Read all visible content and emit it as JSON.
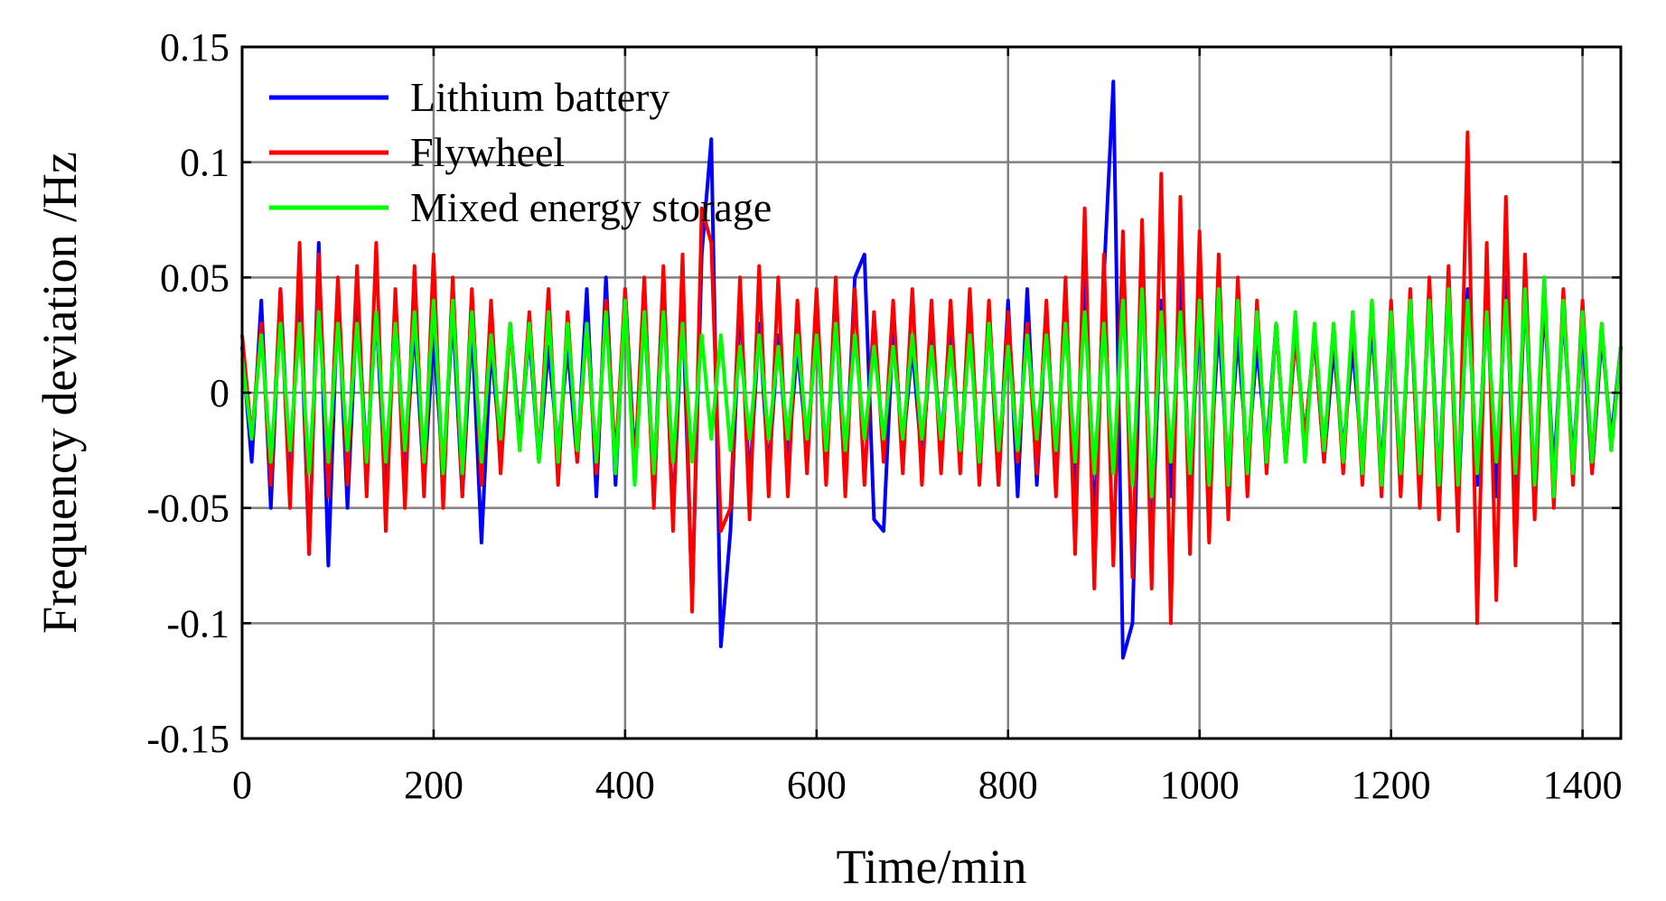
{
  "chart_data": {
    "type": "line",
    "title": "",
    "xlabel": "Time/min",
    "ylabel": "Frequency deviation /Hz",
    "xlim": [
      0,
      1440
    ],
    "ylim": [
      -0.15,
      0.15
    ],
    "xticks": [
      0,
      200,
      400,
      600,
      800,
      1000,
      1200,
      1400
    ],
    "xtick_labels": [
      "0",
      "200",
      "400",
      "600",
      "800",
      "1000",
      "1200",
      "1400"
    ],
    "yticks": [
      0.15,
      0.1,
      0.05,
      0,
      -0.05,
      -0.1,
      -0.15
    ],
    "ytick_labels": [
      "0.15",
      "0.1",
      "0.05",
      "0",
      "-0.05",
      "-0.1",
      "-0.15"
    ],
    "grid": true,
    "legend_position": "top-left",
    "series": [
      {
        "name": "Lithium battery",
        "color": "#0000ff",
        "x": [
          0,
          10,
          20,
          30,
          40,
          50,
          60,
          70,
          80,
          90,
          100,
          110,
          120,
          130,
          140,
          150,
          160,
          170,
          180,
          190,
          200,
          210,
          220,
          230,
          240,
          250,
          260,
          270,
          280,
          290,
          300,
          310,
          320,
          330,
          340,
          350,
          360,
          370,
          380,
          390,
          400,
          410,
          420,
          430,
          440,
          450,
          460,
          470,
          480,
          490,
          500,
          510,
          520,
          530,
          540,
          550,
          560,
          570,
          580,
          590,
          600,
          610,
          620,
          630,
          640,
          650,
          660,
          670,
          680,
          690,
          700,
          710,
          720,
          730,
          740,
          750,
          760,
          770,
          780,
          790,
          800,
          810,
          820,
          830,
          840,
          850,
          860,
          870,
          880,
          890,
          900,
          910,
          920,
          930,
          940,
          950,
          960,
          970,
          980,
          990,
          1000,
          1010,
          1020,
          1030,
          1040,
          1050,
          1060,
          1070,
          1080,
          1090,
          1100,
          1110,
          1120,
          1130,
          1140,
          1150,
          1160,
          1170,
          1180,
          1190,
          1200,
          1210,
          1220,
          1230,
          1240,
          1250,
          1260,
          1270,
          1280,
          1290,
          1300,
          1310,
          1320,
          1330,
          1340,
          1350,
          1360,
          1370,
          1380,
          1390,
          1400,
          1410,
          1420,
          1430,
          1440
        ],
        "y": [
          0.02,
          -0.03,
          0.04,
          -0.05,
          0.045,
          -0.04,
          0.05,
          -0.07,
          0.065,
          -0.075,
          0.045,
          -0.05,
          0.04,
          -0.03,
          0.035,
          -0.045,
          0.04,
          -0.035,
          0.03,
          -0.04,
          0.025,
          -0.035,
          0.035,
          -0.045,
          0.03,
          -0.065,
          0.02,
          -0.025,
          0.03,
          -0.02,
          0.025,
          -0.03,
          0.02,
          -0.025,
          0.02,
          -0.03,
          0.045,
          -0.045,
          0.05,
          -0.04,
          0.045,
          -0.03,
          0.035,
          -0.04,
          0.05,
          -0.055,
          0.04,
          -0.09,
          0.06,
          0.11,
          -0.11,
          -0.06,
          0.04,
          -0.04,
          0.03,
          -0.035,
          0.025,
          -0.03,
          0.02,
          -0.025,
          0.03,
          -0.03,
          0.035,
          -0.04,
          0.05,
          0.06,
          -0.055,
          -0.06,
          0.03,
          -0.025,
          0.02,
          -0.03,
          0.025,
          -0.02,
          0.025,
          -0.03,
          0.03,
          -0.035,
          0.035,
          -0.04,
          0.04,
          -0.045,
          0.045,
          -0.04,
          0.035,
          -0.035,
          0.04,
          -0.045,
          0.05,
          -0.06,
          0.05,
          0.135,
          -0.115,
          -0.1,
          0.06,
          -0.07,
          0.04,
          -0.045,
          0.05,
          -0.04,
          0.035,
          -0.04,
          0.03,
          -0.035,
          0.025,
          -0.03,
          0.02,
          -0.025,
          0.03,
          -0.03,
          0.025,
          -0.02,
          0.025,
          -0.03,
          0.02,
          -0.025,
          0.02,
          -0.03,
          0.03,
          -0.035,
          0.035,
          -0.04,
          0.04,
          -0.045,
          0.045,
          -0.04,
          0.05,
          -0.05,
          0.045,
          -0.04,
          0.04,
          -0.045,
          0.05,
          -0.055,
          0.045,
          -0.045,
          0.04,
          -0.035,
          0.035,
          -0.03,
          0.03,
          -0.035,
          0.025,
          -0.02,
          0.02
        ]
      },
      {
        "name": "Flywheel",
        "color": "#ff0000",
        "x": [
          0,
          10,
          20,
          30,
          40,
          50,
          60,
          70,
          80,
          90,
          100,
          110,
          120,
          130,
          140,
          150,
          160,
          170,
          180,
          190,
          200,
          210,
          220,
          230,
          240,
          250,
          260,
          270,
          280,
          290,
          300,
          310,
          320,
          330,
          340,
          350,
          360,
          370,
          380,
          390,
          400,
          410,
          420,
          430,
          440,
          450,
          460,
          470,
          480,
          490,
          500,
          510,
          520,
          530,
          540,
          550,
          560,
          570,
          580,
          590,
          600,
          610,
          620,
          630,
          640,
          650,
          660,
          670,
          680,
          690,
          700,
          710,
          720,
          730,
          740,
          750,
          760,
          770,
          780,
          790,
          800,
          810,
          820,
          830,
          840,
          850,
          860,
          870,
          880,
          890,
          900,
          910,
          920,
          930,
          940,
          950,
          960,
          970,
          980,
          990,
          1000,
          1010,
          1020,
          1030,
          1040,
          1050,
          1060,
          1070,
          1080,
          1090,
          1100,
          1110,
          1120,
          1130,
          1140,
          1150,
          1160,
          1170,
          1180,
          1190,
          1200,
          1210,
          1220,
          1230,
          1240,
          1250,
          1260,
          1270,
          1280,
          1290,
          1300,
          1310,
          1320,
          1330,
          1340,
          1350,
          1360,
          1370,
          1380,
          1390,
          1400,
          1410,
          1420,
          1430,
          1440
        ],
        "y": [
          0.025,
          -0.02,
          0.03,
          -0.04,
          0.045,
          -0.05,
          0.065,
          -0.07,
          0.06,
          -0.045,
          0.05,
          -0.04,
          0.055,
          -0.045,
          0.065,
          -0.06,
          0.045,
          -0.05,
          0.055,
          -0.045,
          0.06,
          -0.05,
          0.05,
          -0.045,
          0.045,
          -0.04,
          0.04,
          -0.035,
          0.03,
          -0.025,
          0.035,
          -0.03,
          0.045,
          -0.04,
          0.035,
          -0.03,
          0.03,
          -0.035,
          0.04,
          -0.03,
          0.045,
          -0.035,
          0.05,
          -0.05,
          0.055,
          -0.06,
          0.06,
          -0.095,
          0.08,
          0.065,
          -0.06,
          -0.05,
          0.05,
          -0.055,
          0.055,
          -0.045,
          0.05,
          -0.045,
          0.04,
          -0.035,
          0.045,
          -0.04,
          0.05,
          -0.045,
          0.045,
          -0.04,
          0.035,
          -0.03,
          0.04,
          -0.035,
          0.045,
          -0.04,
          0.04,
          -0.035,
          0.04,
          -0.035,
          0.045,
          -0.04,
          0.04,
          -0.04,
          0.035,
          -0.03,
          0.03,
          -0.035,
          0.04,
          -0.045,
          0.05,
          -0.07,
          0.08,
          -0.085,
          0.06,
          -0.075,
          0.07,
          -0.08,
          0.075,
          -0.085,
          0.095,
          -0.1,
          0.085,
          -0.07,
          0.07,
          -0.065,
          0.06,
          -0.055,
          0.05,
          -0.045,
          0.04,
          -0.035,
          0.03,
          -0.03,
          0.025,
          -0.02,
          0.025,
          -0.03,
          0.03,
          -0.035,
          0.035,
          -0.04,
          0.04,
          -0.045,
          0.04,
          -0.045,
          0.045,
          -0.05,
          0.05,
          -0.055,
          0.055,
          -0.06,
          0.113,
          -0.1,
          0.065,
          -0.09,
          0.085,
          -0.075,
          0.06,
          -0.055,
          0.05,
          -0.05,
          0.045,
          -0.04,
          0.04,
          -0.035,
          0.03,
          -0.025,
          0.02
        ]
      },
      {
        "name": "Mixed energy storage",
        "color": "#00ff00",
        "x": [
          0,
          10,
          20,
          30,
          40,
          50,
          60,
          70,
          80,
          90,
          100,
          110,
          120,
          130,
          140,
          150,
          160,
          170,
          180,
          190,
          200,
          210,
          220,
          230,
          240,
          250,
          260,
          270,
          280,
          290,
          300,
          310,
          320,
          330,
          340,
          350,
          360,
          370,
          380,
          390,
          400,
          410,
          420,
          430,
          440,
          450,
          460,
          470,
          480,
          490,
          500,
          510,
          520,
          530,
          540,
          550,
          560,
          570,
          580,
          590,
          600,
          610,
          620,
          630,
          640,
          650,
          660,
          670,
          680,
          690,
          700,
          710,
          720,
          730,
          740,
          750,
          760,
          770,
          780,
          790,
          800,
          810,
          820,
          830,
          840,
          850,
          860,
          870,
          880,
          890,
          900,
          910,
          920,
          930,
          940,
          950,
          960,
          970,
          980,
          990,
          1000,
          1010,
          1020,
          1030,
          1040,
          1050,
          1060,
          1070,
          1080,
          1090,
          1100,
          1110,
          1120,
          1130,
          1140,
          1150,
          1160,
          1170,
          1180,
          1190,
          1200,
          1210,
          1220,
          1230,
          1240,
          1250,
          1260,
          1270,
          1280,
          1290,
          1300,
          1310,
          1320,
          1330,
          1340,
          1350,
          1360,
          1370,
          1380,
          1390,
          1400,
          1410,
          1420,
          1430,
          1440
        ],
        "y": [
          0.015,
          -0.02,
          0.025,
          -0.03,
          0.03,
          -0.025,
          0.03,
          -0.035,
          0.035,
          -0.03,
          0.03,
          -0.025,
          0.03,
          -0.03,
          0.035,
          -0.03,
          0.03,
          -0.025,
          0.035,
          -0.03,
          0.04,
          -0.035,
          0.04,
          -0.035,
          0.035,
          -0.03,
          0.025,
          -0.02,
          0.03,
          -0.025,
          0.03,
          -0.03,
          0.035,
          -0.03,
          0.03,
          -0.025,
          0.03,
          -0.03,
          0.035,
          -0.035,
          0.04,
          -0.04,
          0.035,
          -0.035,
          0.035,
          -0.03,
          0.03,
          -0.03,
          0.025,
          -0.02,
          0.025,
          -0.025,
          0.02,
          -0.02,
          0.025,
          -0.02,
          0.02,
          -0.02,
          0.025,
          -0.02,
          0.025,
          -0.025,
          0.03,
          -0.025,
          0.025,
          -0.02,
          0.02,
          -0.02,
          0.02,
          -0.02,
          0.025,
          -0.02,
          0.02,
          -0.02,
          0.02,
          -0.025,
          0.025,
          -0.03,
          0.03,
          -0.025,
          0.02,
          -0.025,
          0.025,
          -0.02,
          0.025,
          -0.025,
          0.03,
          -0.03,
          0.035,
          -0.035,
          0.03,
          -0.035,
          0.04,
          -0.04,
          0.045,
          -0.045,
          0.035,
          -0.03,
          0.035,
          -0.035,
          0.04,
          -0.04,
          0.045,
          -0.04,
          0.04,
          -0.035,
          0.035,
          -0.03,
          0.03,
          -0.03,
          0.035,
          -0.03,
          0.03,
          -0.025,
          0.03,
          -0.03,
          0.035,
          -0.035,
          0.04,
          -0.04,
          0.035,
          -0.035,
          0.04,
          -0.035,
          0.04,
          -0.04,
          0.045,
          -0.04,
          0.04,
          -0.035,
          0.035,
          -0.03,
          0.04,
          -0.035,
          0.045,
          -0.04,
          0.05,
          -0.045,
          0.04,
          -0.035,
          0.035,
          -0.03,
          0.03,
          -0.025,
          0.02
        ]
      }
    ]
  }
}
